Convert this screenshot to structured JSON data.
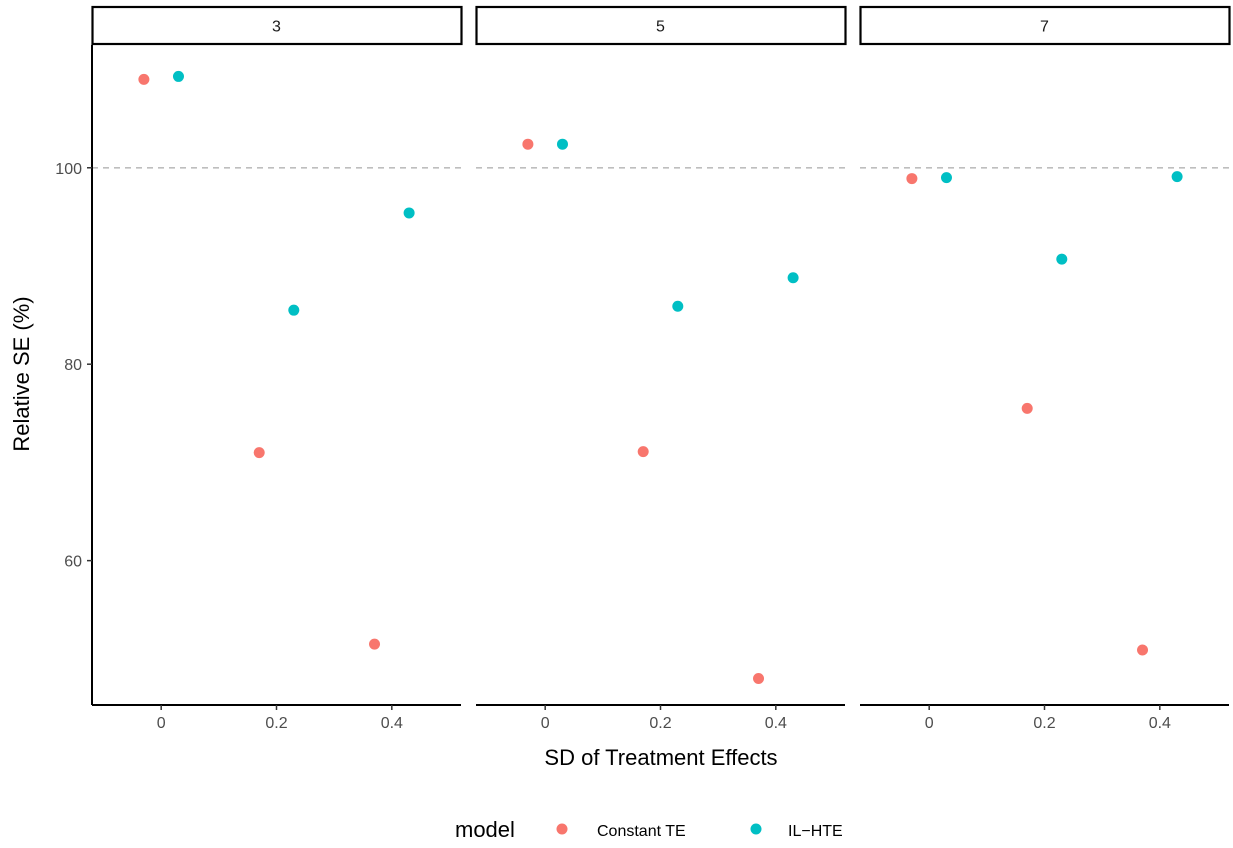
{
  "chart_data": {
    "type": "scatter",
    "facet_var": "",
    "facets": [
      "3",
      "5",
      "7"
    ],
    "xlabel": "SD of Treatment Effects",
    "ylabel": "Relative SE (%)",
    "x_ticks": [
      {
        "value": 0,
        "label": "0"
      },
      {
        "value": 0.2,
        "label": "0.2"
      },
      {
        "value": 0.4,
        "label": "0.4"
      }
    ],
    "y_ticks": [
      {
        "value": 60,
        "label": "60"
      },
      {
        "value": 80,
        "label": "80"
      },
      {
        "value": 100,
        "label": "100"
      }
    ],
    "xlim": [
      -0.12,
      0.52
    ],
    "ylim": [
      45.3,
      112.5
    ],
    "reference_line": {
      "y": 100,
      "style": "dashed",
      "color": "#bebebe"
    },
    "dodge": 0.03,
    "legend": {
      "title": "model",
      "position": "bottom"
    },
    "series": [
      {
        "name": "Constant TE",
        "color": "#f8766d",
        "facets": {
          "3": [
            {
              "x": 0,
              "y": 109.0
            },
            {
              "x": 0.2,
              "y": 71.0
            },
            {
              "x": 0.4,
              "y": 51.5
            }
          ],
          "5": [
            {
              "x": 0,
              "y": 102.4
            },
            {
              "x": 0.2,
              "y": 71.1
            },
            {
              "x": 0.4,
              "y": 48.0
            }
          ],
          "7": [
            {
              "x": 0,
              "y": 98.9
            },
            {
              "x": 0.2,
              "y": 75.5
            },
            {
              "x": 0.4,
              "y": 50.9
            }
          ]
        }
      },
      {
        "name": "IL−HTE",
        "color": "#00bfc4",
        "facets": {
          "3": [
            {
              "x": 0,
              "y": 109.3
            },
            {
              "x": 0.2,
              "y": 85.5
            },
            {
              "x": 0.4,
              "y": 95.4
            }
          ],
          "5": [
            {
              "x": 0,
              "y": 102.4
            },
            {
              "x": 0.2,
              "y": 85.9
            },
            {
              "x": 0.4,
              "y": 88.8
            }
          ],
          "7": [
            {
              "x": 0,
              "y": 99.0
            },
            {
              "x": 0.2,
              "y": 90.7
            },
            {
              "x": 0.4,
              "y": 99.1
            }
          ]
        }
      }
    ]
  }
}
